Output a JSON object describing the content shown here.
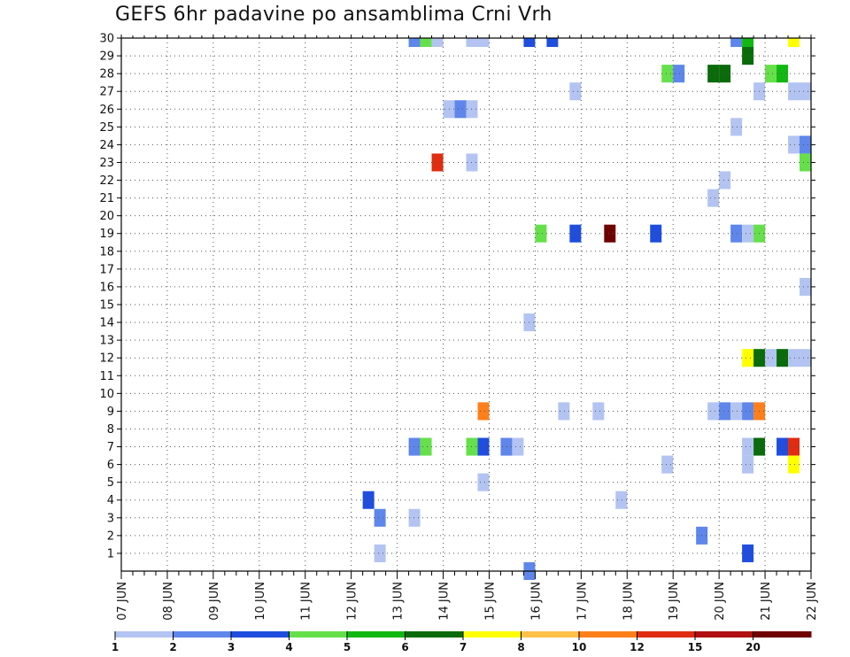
{
  "chart_data": {
    "type": "heatmap",
    "title": "GEFS 6hr padavine po ansamblima Crni Vrh",
    "xlabel": "",
    "ylabel": "",
    "x_ticks": [
      "07 JUN",
      "08 JUN",
      "09 JUN",
      "10 JUN",
      "11 JUN",
      "12 JUN",
      "13 JUN",
      "14 JUN",
      "15 JUN",
      "16 JUN",
      "17 JUN",
      "18 JUN",
      "19 JUN",
      "20 JUN",
      "21 JUN",
      "22 JUN"
    ],
    "x_range_days": [
      7,
      22
    ],
    "y_ticks": [
      1,
      2,
      3,
      4,
      5,
      6,
      7,
      8,
      9,
      10,
      11,
      12,
      13,
      14,
      15,
      16,
      17,
      18,
      19,
      20,
      21,
      22,
      23,
      24,
      25,
      26,
      27,
      28,
      29,
      30
    ],
    "y_range": [
      0,
      30
    ],
    "grid": true,
    "legend": {
      "placement": "bottom",
      "labels": [
        "1",
        "2",
        "3",
        "4",
        "5",
        "6",
        "7",
        "8",
        "10",
        "12",
        "15",
        "20"
      ],
      "colors": [
        "#b3c4f2",
        "#5f86ea",
        "#1f4ede",
        "#66e04a",
        "#12b812",
        "#0a6b0a",
        "#ffff00",
        "#ffc14a",
        "#ff7f1a",
        "#e02c10",
        "#b01010",
        "#6e0000"
      ]
    },
    "cells": [
      {
        "member": 30,
        "day": 13.375,
        "level": 1
      },
      {
        "member": 30,
        "day": 13.625,
        "level": 3
      },
      {
        "member": 30,
        "day": 13.875,
        "level": 0
      },
      {
        "member": 30,
        "day": 14.625,
        "level": 0
      },
      {
        "member": 30,
        "day": 14.875,
        "level": 0
      },
      {
        "member": 30,
        "day": 15.875,
        "level": 2
      },
      {
        "member": 30,
        "day": 16.375,
        "level": 2
      },
      {
        "member": 30,
        "day": 20.375,
        "level": 1
      },
      {
        "member": 30,
        "day": 20.625,
        "level": 4
      },
      {
        "member": 30,
        "day": 21.625,
        "level": 6
      },
      {
        "member": 29,
        "day": 20.625,
        "level": 5
      },
      {
        "member": 28,
        "day": 18.875,
        "level": 3
      },
      {
        "member": 28,
        "day": 19.125,
        "level": 1
      },
      {
        "member": 28,
        "day": 19.875,
        "level": 5
      },
      {
        "member": 28,
        "day": 20.125,
        "level": 5
      },
      {
        "member": 28,
        "day": 21.125,
        "level": 3
      },
      {
        "member": 28,
        "day": 21.375,
        "level": 4
      },
      {
        "member": 27,
        "day": 16.875,
        "level": 0
      },
      {
        "member": 27,
        "day": 20.875,
        "level": 0
      },
      {
        "member": 27,
        "day": 21.625,
        "level": 0
      },
      {
        "member": 27,
        "day": 21.875,
        "level": 0
      },
      {
        "member": 26,
        "day": 14.125,
        "level": 0
      },
      {
        "member": 26,
        "day": 14.375,
        "level": 1
      },
      {
        "member": 26,
        "day": 14.625,
        "level": 0
      },
      {
        "member": 25,
        "day": 20.375,
        "level": 0
      },
      {
        "member": 24,
        "day": 21.625,
        "level": 0
      },
      {
        "member": 24,
        "day": 21.875,
        "level": 1
      },
      {
        "member": 23,
        "day": 13.875,
        "level": 9
      },
      {
        "member": 23,
        "day": 14.625,
        "level": 0
      },
      {
        "member": 23,
        "day": 21.875,
        "level": 3
      },
      {
        "member": 22,
        "day": 20.125,
        "level": 0
      },
      {
        "member": 21,
        "day": 19.875,
        "level": 0
      },
      {
        "member": 19,
        "day": 16.125,
        "level": 3
      },
      {
        "member": 19,
        "day": 16.875,
        "level": 2
      },
      {
        "member": 19,
        "day": 17.625,
        "level": 11
      },
      {
        "member": 19,
        "day": 18.625,
        "level": 2
      },
      {
        "member": 19,
        "day": 20.375,
        "level": 1
      },
      {
        "member": 19,
        "day": 20.625,
        "level": 0
      },
      {
        "member": 19,
        "day": 20.875,
        "level": 3
      },
      {
        "member": 16,
        "day": 21.875,
        "level": 0
      },
      {
        "member": 14,
        "day": 15.875,
        "level": 0
      },
      {
        "member": 12,
        "day": 20.625,
        "level": 6
      },
      {
        "member": 12,
        "day": 20.875,
        "level": 5
      },
      {
        "member": 12,
        "day": 21.125,
        "level": 0
      },
      {
        "member": 12,
        "day": 21.375,
        "level": 5
      },
      {
        "member": 12,
        "day": 21.625,
        "level": 0
      },
      {
        "member": 12,
        "day": 21.875,
        "level": 0
      },
      {
        "member": 9,
        "day": 14.875,
        "level": 8
      },
      {
        "member": 9,
        "day": 16.625,
        "level": 0
      },
      {
        "member": 9,
        "day": 17.375,
        "level": 0
      },
      {
        "member": 9,
        "day": 19.875,
        "level": 0
      },
      {
        "member": 9,
        "day": 20.125,
        "level": 1
      },
      {
        "member": 9,
        "day": 20.375,
        "level": 0
      },
      {
        "member": 9,
        "day": 20.625,
        "level": 1
      },
      {
        "member": 9,
        "day": 20.875,
        "level": 8
      },
      {
        "member": 7,
        "day": 13.375,
        "level": 1
      },
      {
        "member": 7,
        "day": 13.625,
        "level": 3
      },
      {
        "member": 7,
        "day": 14.625,
        "level": 3
      },
      {
        "member": 7,
        "day": 14.875,
        "level": 2
      },
      {
        "member": 7,
        "day": 15.375,
        "level": 1
      },
      {
        "member": 7,
        "day": 15.625,
        "level": 0
      },
      {
        "member": 7,
        "day": 20.625,
        "level": 0
      },
      {
        "member": 7,
        "day": 20.875,
        "level": 5
      },
      {
        "member": 7,
        "day": 21.375,
        "level": 2
      },
      {
        "member": 7,
        "day": 21.625,
        "level": 9
      },
      {
        "member": 6,
        "day": 18.875,
        "level": 0
      },
      {
        "member": 6,
        "day": 20.625,
        "level": 0
      },
      {
        "member": 6,
        "day": 21.625,
        "level": 6
      },
      {
        "member": 5,
        "day": 14.875,
        "level": 0
      },
      {
        "member": 4,
        "day": 12.375,
        "level": 2
      },
      {
        "member": 4,
        "day": 17.875,
        "level": 0
      },
      {
        "member": 3,
        "day": 12.625,
        "level": 1
      },
      {
        "member": 3,
        "day": 13.375,
        "level": 0
      },
      {
        "member": 2,
        "day": 19.625,
        "level": 1
      },
      {
        "member": 1,
        "day": 12.625,
        "level": 0
      },
      {
        "member": 1,
        "day": 20.625,
        "level": 2
      },
      {
        "member": 0,
        "day": 15.875,
        "level": 1
      }
    ]
  }
}
